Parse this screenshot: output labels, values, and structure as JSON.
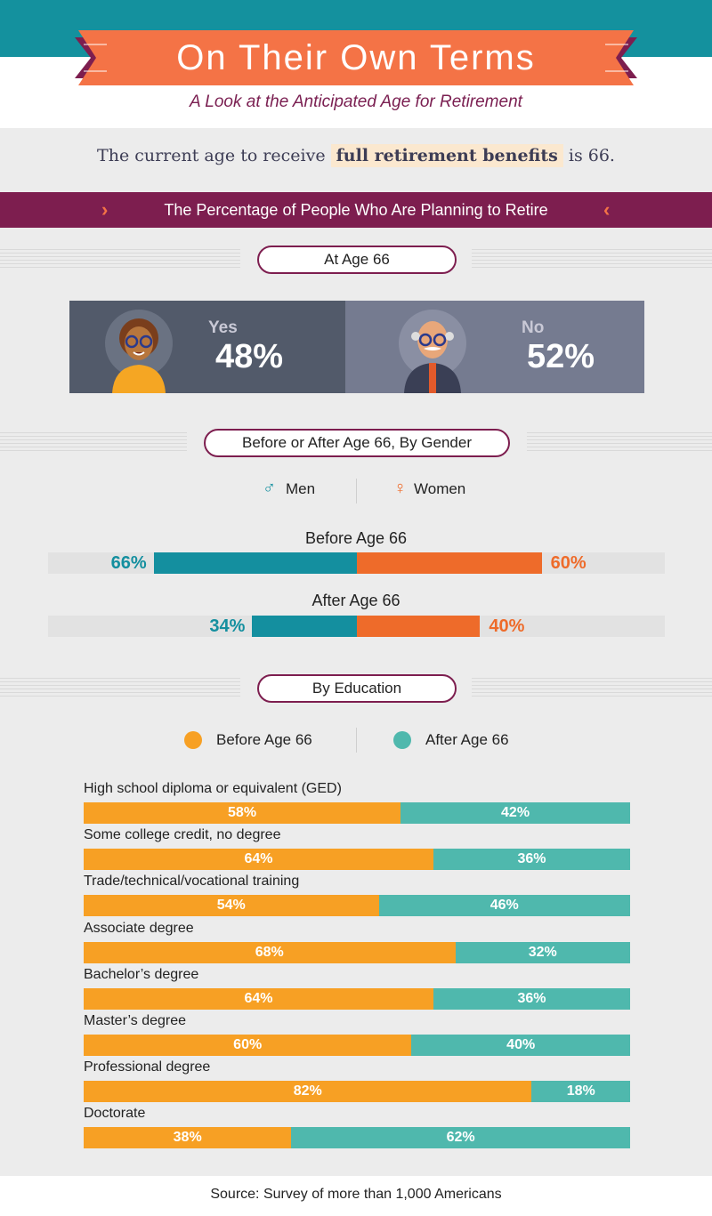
{
  "header": {
    "title": "On Their Own Terms",
    "subtitle": "A Look at the Anticipated Age for Retirement"
  },
  "intro": {
    "before": "The current age to receive",
    "highlight": "full retirement benefits",
    "after": "is 66."
  },
  "section_banner": "The Percentage of People Who Are Planning to Retire",
  "colors": {
    "teal": "#14919e",
    "orange_header": "#f47346",
    "purple": "#7d1e4f",
    "men": "#148f9f",
    "women": "#ee6b2a",
    "before": "#f7a024",
    "after": "#4fb8ad"
  },
  "chart_data": [
    {
      "type": "bar",
      "title": "At Age 66",
      "categories": [
        "Yes",
        "No"
      ],
      "values": [
        48,
        52
      ],
      "labels": [
        "48%",
        "52%"
      ]
    },
    {
      "type": "bar",
      "title": "Before or After Age 66, By Gender",
      "legend": [
        "Men",
        "Women"
      ],
      "categories": [
        "Before Age 66",
        "After Age 66"
      ],
      "series": [
        {
          "name": "Men",
          "values": [
            66,
            34
          ],
          "labels": [
            "66%",
            "34%"
          ]
        },
        {
          "name": "Women",
          "values": [
            60,
            40
          ],
          "labels": [
            "60%",
            "40%"
          ]
        }
      ],
      "ylim": [
        0,
        100
      ]
    },
    {
      "type": "bar",
      "title": "By Education",
      "legend": [
        "Before Age 66",
        "After Age 66"
      ],
      "categories": [
        "High school diploma or equivalent (GED)",
        "Some college credit, no degree",
        "Trade/technical/vocational training",
        "Associate degree",
        "Bachelor’s degree",
        "Master’s degree",
        "Professional degree",
        "Doctorate"
      ],
      "series": [
        {
          "name": "Before Age 66",
          "values": [
            58,
            64,
            54,
            68,
            64,
            60,
            82,
            38
          ],
          "labels": [
            "58%",
            "64%",
            "54%",
            "68%",
            "64%",
            "60%",
            "82%",
            "38%"
          ]
        },
        {
          "name": "After Age 66",
          "values": [
            42,
            36,
            46,
            32,
            36,
            40,
            18,
            62
          ],
          "labels": [
            "42%",
            "36%",
            "46%",
            "32%",
            "36%",
            "40%",
            "18%",
            "62%"
          ]
        }
      ],
      "stacked": true,
      "ylim": [
        0,
        100
      ]
    }
  ],
  "source": "Source: Survey of more than 1,000 Americans"
}
